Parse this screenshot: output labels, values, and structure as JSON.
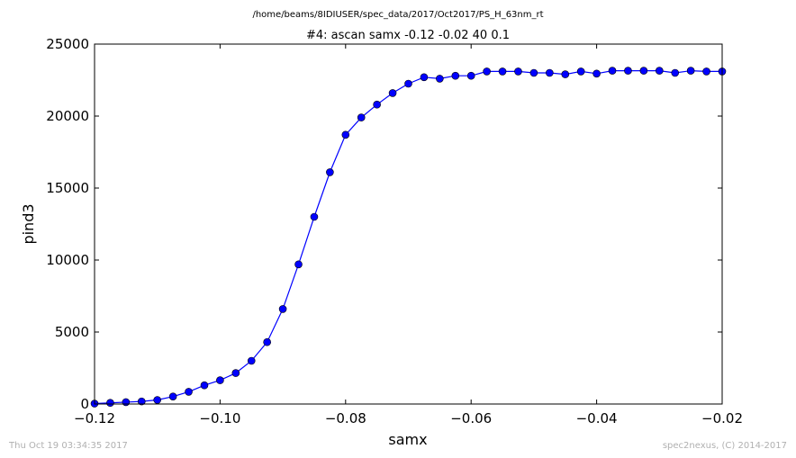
{
  "chart_data": {
    "type": "line",
    "suptitle": "/home/beams/8IDIUSER/spec_data/2017/Oct2017/PS_H_63nm_rt",
    "title": "#4: ascan  samx -0.12 -0.02  40 0.1",
    "xlabel": "samx",
    "ylabel": "pind3",
    "xlim": [
      -0.12,
      -0.02
    ],
    "ylim": [
      0,
      25000
    ],
    "x_ticks": [
      -0.12,
      -0.1,
      -0.08,
      -0.06,
      -0.04,
      -0.02
    ],
    "x_tick_labels": [
      "−0.12",
      "−0.10",
      "−0.08",
      "−0.06",
      "−0.04",
      "−0.02"
    ],
    "y_ticks": [
      0,
      5000,
      10000,
      15000,
      20000,
      25000
    ],
    "y_tick_labels": [
      "0",
      "5000",
      "10000",
      "15000",
      "20000",
      "25000"
    ],
    "grid": false,
    "legend": "none",
    "color": "#0000ff",
    "marker": "circle",
    "series": [
      {
        "x": [
          -0.12,
          -0.1175,
          -0.115,
          -0.1125,
          -0.11,
          -0.1075,
          -0.105,
          -0.1025,
          -0.1,
          -0.0975,
          -0.095,
          -0.0925,
          -0.09,
          -0.0875,
          -0.085,
          -0.0825,
          -0.08,
          -0.0775,
          -0.075,
          -0.0725,
          -0.07,
          -0.0675,
          -0.065,
          -0.0625,
          -0.06,
          -0.0575,
          -0.055,
          -0.0525,
          -0.05,
          -0.0475,
          -0.045,
          -0.0425,
          -0.04,
          -0.0375,
          -0.035,
          -0.0325,
          -0.03,
          -0.0275,
          -0.025,
          -0.0225,
          -0.02
        ],
        "y": [
          30,
          80,
          130,
          180,
          280,
          520,
          850,
          1300,
          1650,
          2150,
          3000,
          4300,
          6600,
          9700,
          13000,
          16100,
          18700,
          19900,
          20800,
          21600,
          22250,
          22700,
          22600,
          22800,
          22800,
          23100,
          23100,
          23100,
          23000,
          23000,
          22900,
          23100,
          22950,
          23150,
          23150,
          23150,
          23150,
          23000,
          23150,
          23100,
          23100
        ]
      }
    ]
  },
  "footer": {
    "timestamp": "Thu Oct 19 03:34:35 2017",
    "credit": "spec2nexus, (C) 2014-2017"
  }
}
